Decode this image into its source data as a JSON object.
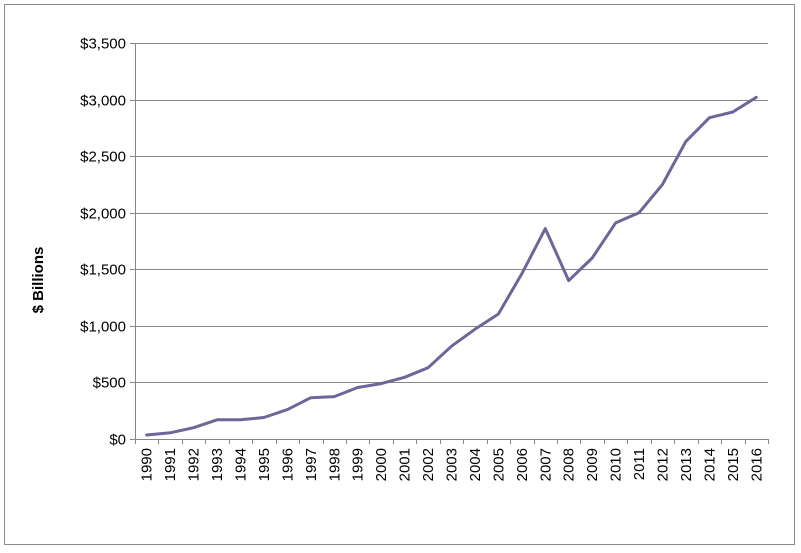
{
  "chart_data": {
    "type": "line",
    "title": "",
    "xlabel": "",
    "ylabel": "$ Billions",
    "categories": [
      "1990",
      "1991",
      "1992",
      "1993",
      "1994",
      "1995",
      "1996",
      "1997",
      "1998",
      "1999",
      "2000",
      "2001",
      "2002",
      "2003",
      "2004",
      "2005",
      "2006",
      "2007",
      "2008",
      "2009",
      "2010",
      "2011",
      "2012",
      "2013",
      "2014",
      "2015",
      "2016"
    ],
    "series": [
      {
        "values": [
          35,
          55,
          100,
          170,
          170,
          190,
          260,
          365,
          375,
          455,
          490,
          545,
          630,
          820,
          970,
          1105,
          1460,
          1860,
          1400,
          1600,
          1910,
          2000,
          2250,
          2630,
          2840,
          2890,
          3020
        ]
      }
    ],
    "ylim": [
      0,
      3500
    ],
    "yticks": [
      0,
      500,
      1000,
      1500,
      2000,
      2500,
      3000,
      3500
    ],
    "ytick_labels": [
      "$0",
      "$500",
      "$1,000",
      "$1,500",
      "$2,000",
      "$2,500",
      "$3,000",
      "$3,500"
    ],
    "grid": true,
    "line_color": "#6b6799",
    "grid_color": "#878787",
    "legend": "none"
  }
}
